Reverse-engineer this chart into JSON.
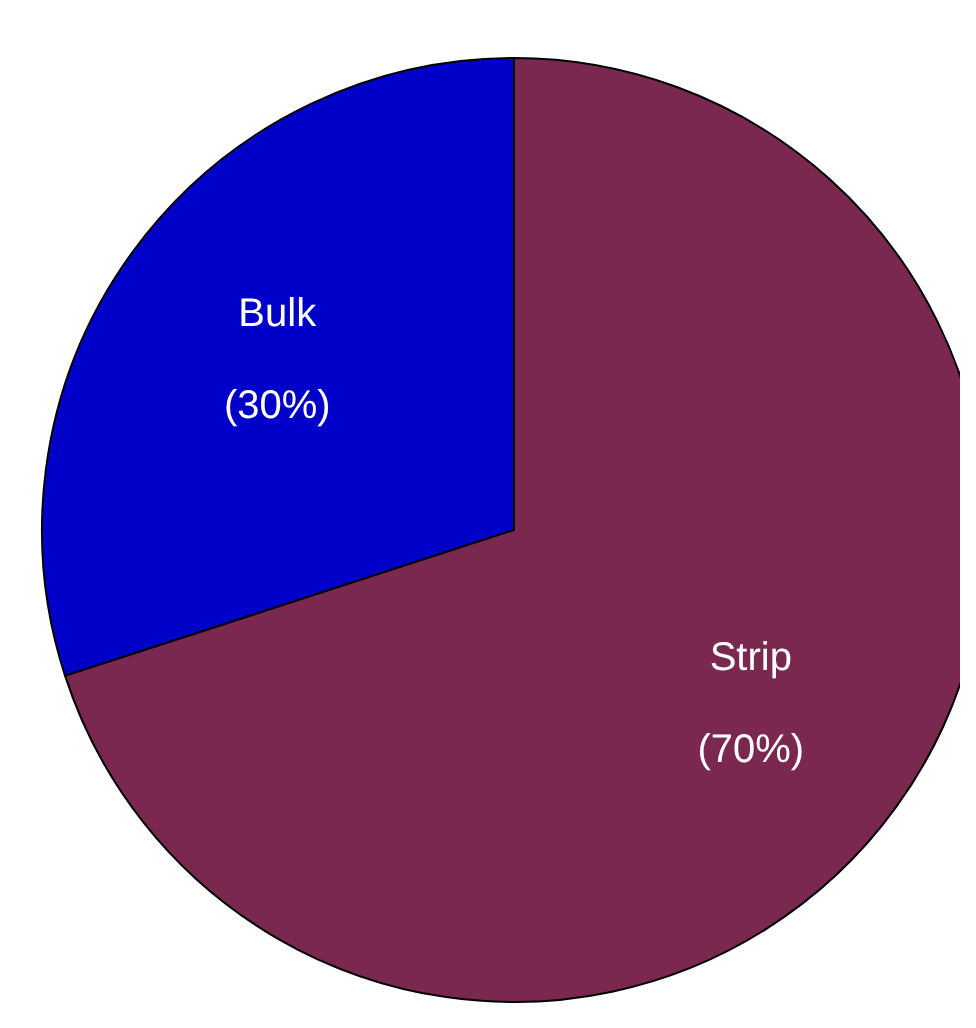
{
  "chart_data": {
    "type": "pie",
    "categories": [
      "Bulk",
      "Strip"
    ],
    "values": [
      30,
      70
    ],
    "value_labels": [
      "(30%)",
      "(70%)"
    ],
    "colors": [
      "#0000c8",
      "#7a2850"
    ]
  }
}
